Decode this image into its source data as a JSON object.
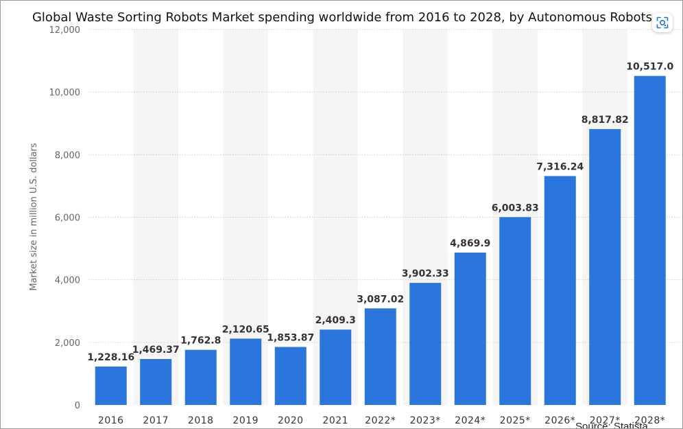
{
  "chart_data": {
    "type": "bar",
    "title": "Global Waste Sorting Robots Market spending worldwide from 2016 to 2028, by Autonomous Robots",
    "xlabel": "",
    "ylabel": "Market size in million U.S. dollars",
    "categories": [
      "2016",
      "2017",
      "2018",
      "2019",
      "2020",
      "2021",
      "2022*",
      "2023*",
      "2024*",
      "2025*",
      "2026*",
      "2027*",
      "2028*"
    ],
    "values": [
      1228.16,
      1469.37,
      1762.8,
      2120.65,
      1853.87,
      2409.3,
      3087.02,
      3902.33,
      4869.9,
      6003.83,
      7316.24,
      8817.82,
      10517.0
    ],
    "value_labels": [
      "1,228.16",
      "1,469.37",
      "1,762.8",
      "2,120.65",
      "1,853.87",
      "2,409.3",
      "3,087.02",
      "3,902.33",
      "4,869.9",
      "6,003.83",
      "7,316.24",
      "8,817.82",
      "10,517.0"
    ],
    "yticks": [
      0,
      2000,
      4000,
      6000,
      8000,
      10000,
      12000
    ],
    "ytick_labels": [
      "0",
      "2,000",
      "4,000",
      "6,000",
      "8,000",
      "10,000",
      "12,000"
    ],
    "ylim": [
      0,
      12000
    ],
    "grid": true,
    "bar_color": "#2a76dd"
  },
  "source": "Source: Statista",
  "icons": {
    "lens": "lens-search-icon"
  }
}
